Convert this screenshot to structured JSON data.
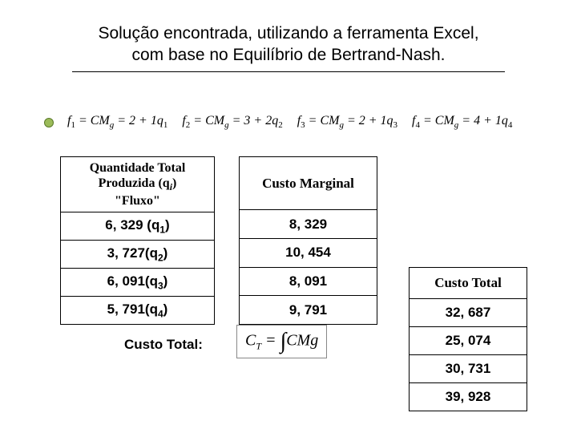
{
  "title": {
    "line1": "Solução encontrada, utilizando a ferramenta Excel,",
    "line2": "com base no Equilíbrio de Bertrand-Nash."
  },
  "formulas": {
    "f1": {
      "lhs": "f",
      "lhs_sub": "1",
      "mid": " = CM",
      "mid_sub": "g",
      "rhs": " = 2 + 1q",
      "rhs_sub": "1"
    },
    "f2": {
      "lhs": "f",
      "lhs_sub": "2",
      "mid": " = CM",
      "mid_sub": "g",
      "rhs": " = 3 + 2q",
      "rhs_sub": "2"
    },
    "f3": {
      "lhs": "f",
      "lhs_sub": "3",
      "mid": " = CM",
      "mid_sub": "g",
      "rhs": " = 2 + 1q",
      "rhs_sub": "3"
    },
    "f4": {
      "lhs": "f",
      "lhs_sub": "4",
      "mid": " = CM",
      "mid_sub": "g",
      "rhs": " = 4 + 1q",
      "rhs_sub": "4"
    }
  },
  "qty_table": {
    "header_l1": "Quantidade Total",
    "header_l2_a": "Produzida (q",
    "header_l2_sub": "i",
    "header_l2_b": ")",
    "header_l3": "\"Fluxo\"",
    "rows": [
      {
        "v": "6, 329 (q",
        "s": "1",
        "e": ")"
      },
      {
        "v": "3, 727(q",
        "s": "2",
        "e": ")"
      },
      {
        "v": "6, 091(q",
        "s": "3",
        "e": ")"
      },
      {
        "v": "5, 791(q",
        "s": "4",
        "e": ")"
      }
    ]
  },
  "cm_table": {
    "header": "Custo Marginal",
    "rows": [
      "8, 329",
      "10, 454",
      "8, 091",
      "9, 791"
    ]
  },
  "custo_total_label": "Custo Total:",
  "integral": {
    "lhs": "C",
    "lhs_sub": "T",
    "eq": " = ",
    "rhs": "CMg"
  },
  "ct_table": {
    "header": "Custo Total",
    "rows": [
      "32, 687",
      "25, 074",
      "30, 731",
      "39, 928"
    ]
  },
  "colors": {
    "bullet_fill": "#9bbb59",
    "bullet_border": "#5a7a2a",
    "border": "#000000",
    "background": "#ffffff"
  }
}
